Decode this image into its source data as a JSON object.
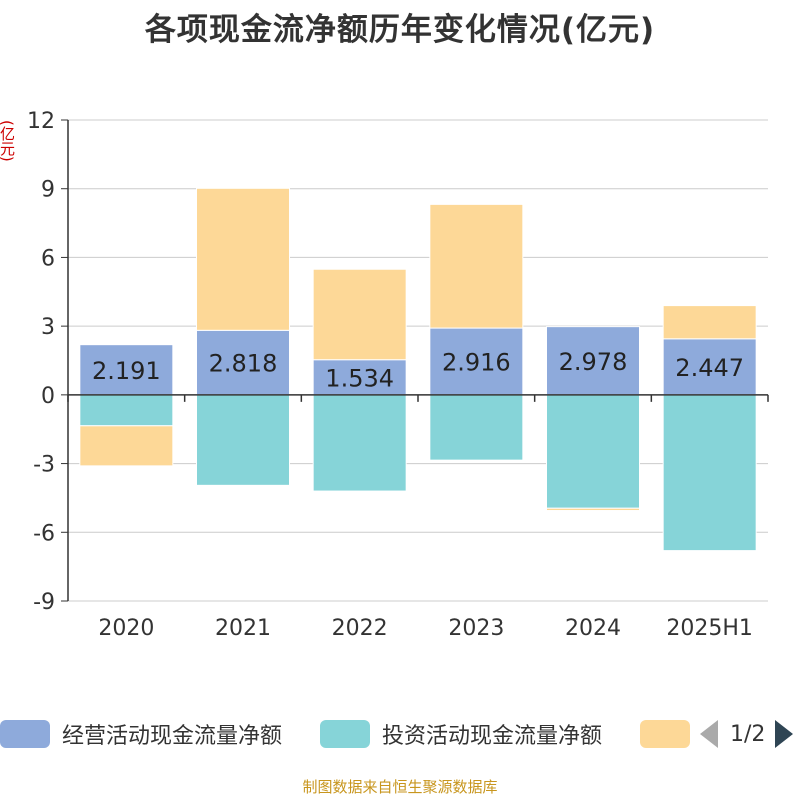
{
  "title": "各项现金流净额历年变化情况(亿元)",
  "unit_label": "(亿元)",
  "legend": {
    "items": [
      {
        "label": "经营活动现金流量净额",
        "color": "#8eaadb"
      },
      {
        "label": "投资活动现金流量净额",
        "color": "#86d4d8"
      },
      {
        "label": "",
        "color": "#fdd897"
      }
    ],
    "page": "1/2"
  },
  "source": "制图数据来自恒生聚源数据库",
  "chart_data": {
    "type": "bar",
    "stacked": true,
    "categories": [
      "2020",
      "2021",
      "2022",
      "2023",
      "2024",
      "2025H1"
    ],
    "series": [
      {
        "name": "经营活动现金流量净额",
        "color": "#8eaadb",
        "values": [
          2.191,
          2.818,
          1.534,
          2.916,
          2.978,
          2.447
        ],
        "labels": [
          "2.191",
          "2.818",
          "1.534",
          "2.916",
          "2.978",
          "2.447"
        ]
      },
      {
        "name": "投资活动现金流量净额",
        "color": "#86d4d8",
        "values": [
          -1.35,
          -3.95,
          -4.2,
          -2.85,
          -4.95,
          -6.8
        ]
      },
      {
        "name": "",
        "color": "#fdd897",
        "values": [
          -1.75,
          6.2,
          3.95,
          5.4,
          -0.1,
          1.45
        ]
      }
    ],
    "ylim": [
      -9,
      12
    ],
    "yticks": [
      12,
      9,
      6,
      3,
      0,
      -3,
      -6,
      -9
    ],
    "ytick_labels": [
      "12",
      "9",
      "6",
      "3",
      "0",
      "-3",
      "-6",
      "-9"
    ],
    "grid": true,
    "legend_position": "bottom"
  }
}
